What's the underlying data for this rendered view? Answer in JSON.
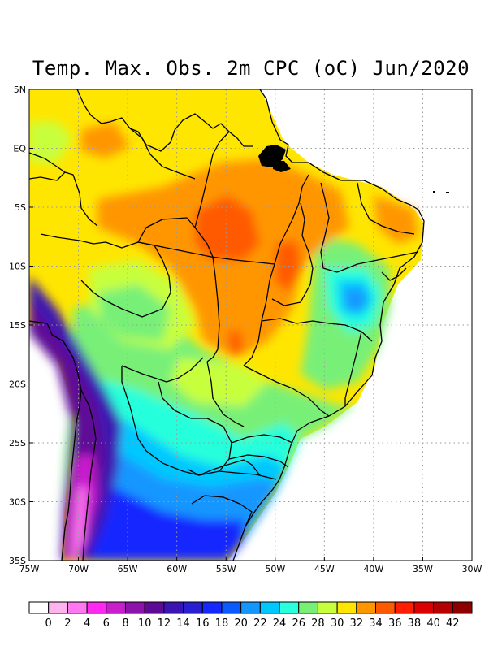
{
  "title": "Temp. Max. Obs. 2m CPC (oC) Jun/2020",
  "lat_labels": [
    "5N",
    "EQ",
    "5S",
    "10S",
    "15S",
    "20S",
    "25S",
    "30S",
    "35S"
  ],
  "lon_labels": [
    "75W",
    "70W",
    "65W",
    "60W",
    "55W",
    "50W",
    "45W",
    "40W",
    "35W",
    "30W"
  ],
  "colorbar": {
    "labels": [
      "0",
      "2",
      "4",
      "6",
      "8",
      "10",
      "12",
      "14",
      "16",
      "18",
      "20",
      "22",
      "24",
      "26",
      "28",
      "30",
      "32",
      "34",
      "36",
      "38",
      "40",
      "42"
    ],
    "colors": [
      "#ffffff",
      "#ffb4f0",
      "#ff78f0",
      "#ff28f0",
      "#c81ecd",
      "#8c14aa",
      "#5f0a96",
      "#3c14b4",
      "#281ed2",
      "#1428ff",
      "#0a5aff",
      "#1496ff",
      "#00c8ff",
      "#28ffdc",
      "#78f078",
      "#c8ff3c",
      "#ffe600",
      "#ff9600",
      "#ff5a00",
      "#ff1e00",
      "#dc0000",
      "#b40000",
      "#8c0000"
    ]
  },
  "extent": {
    "lon_min": -75,
    "lon_max": -30,
    "lat_min": -35,
    "lat_max": 5
  }
}
